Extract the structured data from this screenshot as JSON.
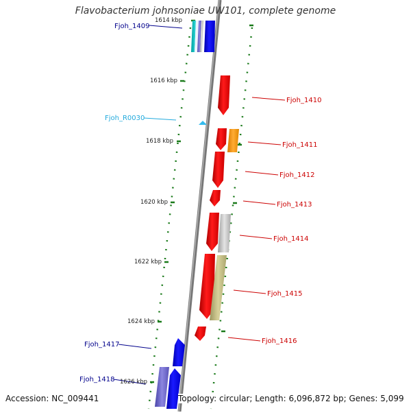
{
  "title": "Flavobacterium johnsoniae UW101, complete genome",
  "accession": "Accession: NC_009441",
  "summary": "Topology: circular; Length: 6,096,872 bp; Genes: 5,099",
  "kbp_labels": [
    "1614 kbp",
    "1616 kbp",
    "1618 kbp",
    "1620 kbp",
    "1622 kbp",
    "1624 kbp",
    "1626 kbp"
  ],
  "gene_labels": [
    {
      "text": "Fjoh_1409",
      "color": "#00008b"
    },
    {
      "text": "Fjoh_R0030",
      "color": "#22aadd"
    },
    {
      "text": "Fjoh_1410",
      "color": "#cc0000"
    },
    {
      "text": "Fjoh_1411",
      "color": "#cc0000"
    },
    {
      "text": "Fjoh_1412",
      "color": "#cc0000"
    },
    {
      "text": "Fjoh_1413",
      "color": "#cc0000"
    },
    {
      "text": "Fjoh_1414",
      "color": "#cc0000"
    },
    {
      "text": "Fjoh_1415",
      "color": "#cc0000"
    },
    {
      "text": "Fjoh_1416",
      "color": "#cc0000"
    },
    {
      "text": "Fjoh_1417",
      "color": "#00008b"
    },
    {
      "text": "Fjoh_1418",
      "color": "#00008b"
    }
  ],
  "colors": {
    "forward_gene": "#ff0000",
    "reverse_gene": "#0000ff",
    "backbone": "#888888",
    "tick": "#1a7a1a",
    "rna": "#33bbee"
  }
}
